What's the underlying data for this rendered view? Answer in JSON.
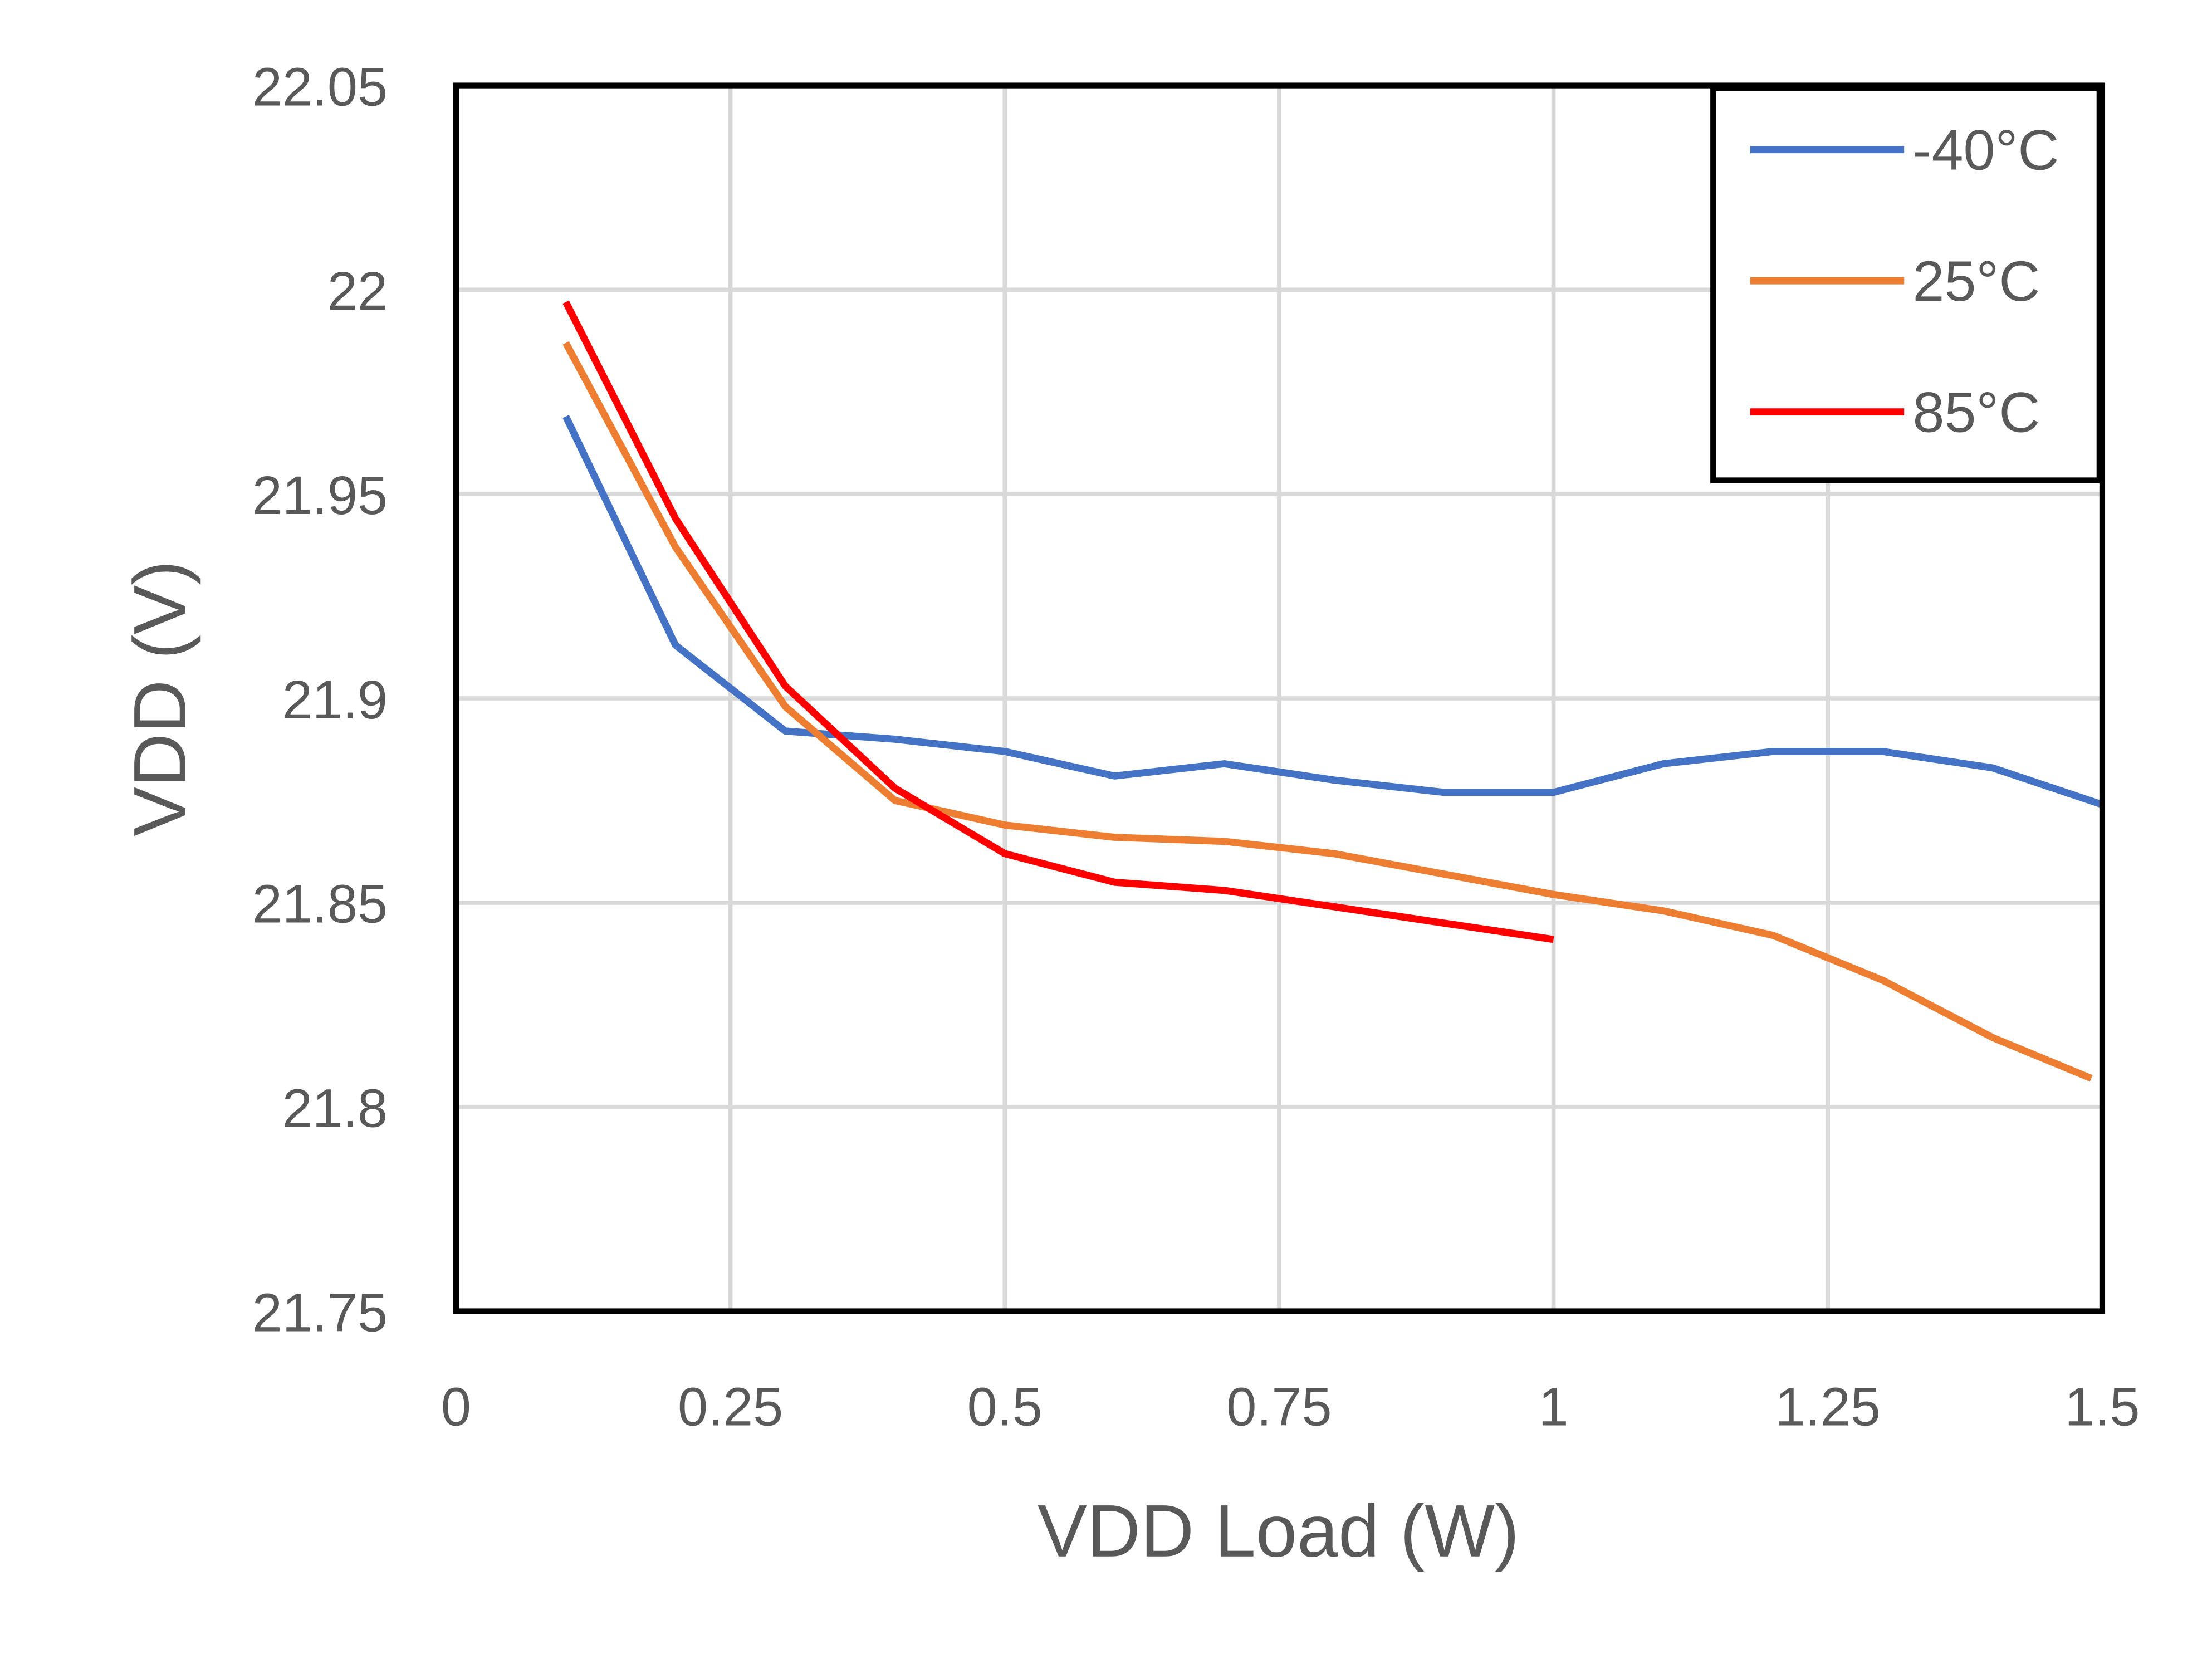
{
  "chart_data": {
    "type": "line",
    "title": "",
    "xlabel": "VDD Load (W)",
    "ylabel": "VDD (V)",
    "xlim": [
      0,
      1.5
    ],
    "ylim": [
      21.75,
      22.05
    ],
    "xticks": [
      "0",
      "0.25",
      "0.5",
      "0.75",
      "1",
      "1.25",
      "1.5"
    ],
    "yticks": [
      "21.75",
      "21.8",
      "21.85",
      "21.9",
      "21.95",
      "22",
      "22.05"
    ],
    "grid": true,
    "legend_position": "top-right",
    "series": [
      {
        "name": "-40°C",
        "color": "#4472C4",
        "x": [
          0.1,
          0.2,
          0.3,
          0.4,
          0.5,
          0.6,
          0.7,
          0.8,
          0.9,
          1.0,
          1.1,
          1.2,
          1.3,
          1.4,
          1.5
        ],
        "y": [
          21.969,
          21.913,
          21.892,
          21.89,
          21.887,
          21.881,
          21.884,
          21.88,
          21.877,
          21.877,
          21.884,
          21.887,
          21.887,
          21.883,
          21.874
        ]
      },
      {
        "name": "25°C",
        "color": "#ED7D31",
        "x": [
          0.1,
          0.2,
          0.3,
          0.4,
          0.5,
          0.6,
          0.7,
          0.8,
          0.9,
          1.0,
          1.1,
          1.2,
          1.3,
          1.4,
          1.49
        ],
        "y": [
          21.987,
          21.937,
          21.898,
          21.875,
          21.869,
          21.866,
          21.865,
          21.862,
          21.857,
          21.852,
          21.848,
          21.842,
          21.831,
          21.817,
          21.807
        ]
      },
      {
        "name": "85°C",
        "color": "#FF0000",
        "x": [
          0.1,
          0.2,
          0.3,
          0.4,
          0.5,
          0.6,
          0.7,
          0.8,
          0.9,
          1.0
        ],
        "y": [
          21.997,
          21.944,
          21.903,
          21.878,
          21.862,
          21.855,
          21.853,
          21.849,
          21.845,
          21.841
        ]
      }
    ]
  }
}
